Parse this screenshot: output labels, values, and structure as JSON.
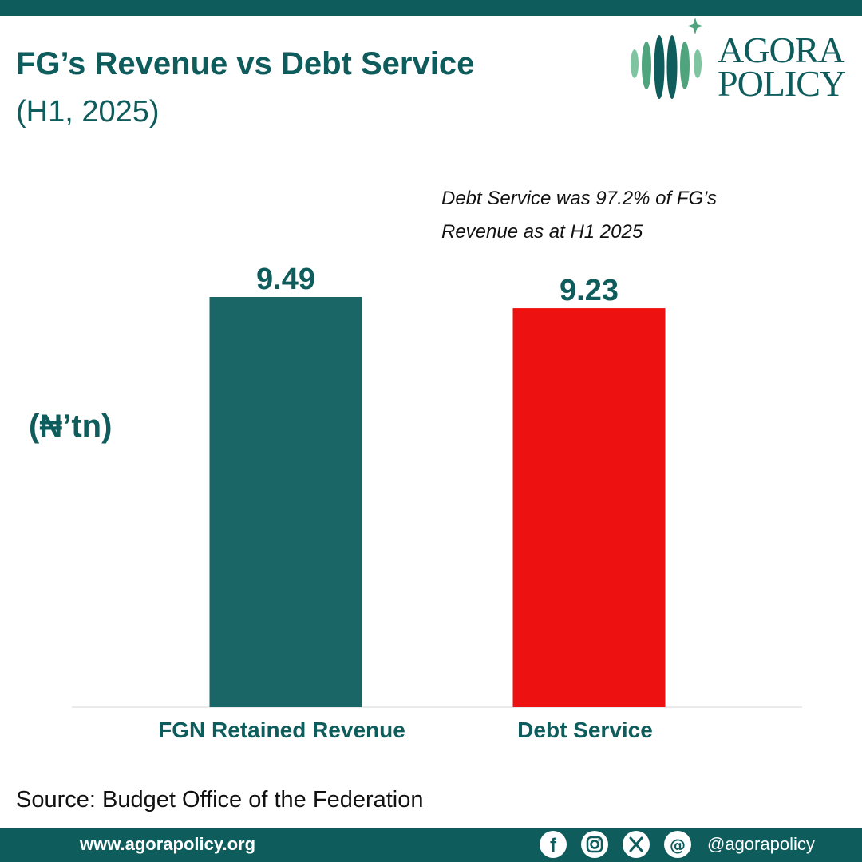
{
  "header": {
    "title": "FG’s Revenue vs Debt Service",
    "subtitle": "(H1, 2025)"
  },
  "logo": {
    "line1": "AGORA",
    "line2": "POLICY",
    "icon": "agora-policy-logo-icon"
  },
  "annotation": {
    "line1": "Debt Service was 97.2% of FG’s",
    "line2": "Revenue as at H1 2025"
  },
  "unit_label": "(₦’tn)",
  "chart_data": {
    "type": "bar",
    "categories": [
      "FGN Retained Revenue",
      "Debt Service"
    ],
    "values": [
      9.49,
      9.23
    ],
    "value_labels": [
      "9.49",
      "9.23"
    ],
    "colors": [
      "#1a6666",
      "#ee1111"
    ],
    "title": "FG’s Revenue vs Debt Service",
    "subtitle": "(H1, 2025)",
    "ylabel": "(₦’tn)",
    "xlabel": "",
    "ylim": [
      0,
      9.49
    ],
    "grid": false,
    "legend": "none"
  },
  "source": "Source: Budget Office of the Federation",
  "footer": {
    "website": "www.agorapolicy.org",
    "handle": "@agorapolicy",
    "icons": [
      "facebook-icon",
      "instagram-icon",
      "x-icon",
      "threads-icon"
    ]
  },
  "colors": {
    "brand": "#0f5c5c",
    "brand_light": "#7fc4a0",
    "revenue_bar": "#1a6666",
    "debt_bar": "#ee1111",
    "text_dark": "#111111"
  }
}
